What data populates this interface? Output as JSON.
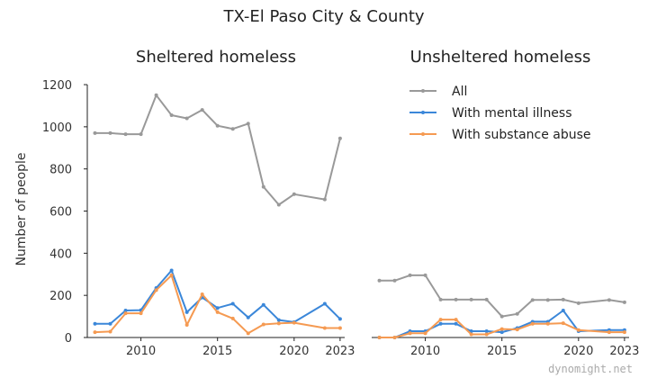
{
  "suptitle": "TX-El Paso City & County",
  "credit": "dynomight.net",
  "colors": {
    "all": "#999999",
    "mental": "#3b87d9",
    "substance": "#f59a52",
    "axis": "#222222",
    "text": "#333333"
  },
  "chart_data": [
    {
      "type": "line",
      "title": "Sheltered homeless",
      "ylabel": "Number of people",
      "xlabel": "",
      "xlim": [
        2006.5,
        2023.3
      ],
      "ylim": [
        0,
        1260
      ],
      "xticks": [
        2010,
        2015,
        2020,
        2023
      ],
      "yticks": [
        0,
        200,
        400,
        600,
        800,
        1000,
        1200
      ],
      "legend": "none",
      "grid": false,
      "series": [
        {
          "name": "All",
          "color_key": "all",
          "x": [
            2007,
            2008,
            2009,
            2010,
            2011,
            2012,
            2013,
            2014,
            2015,
            2016,
            2017,
            2018,
            2019,
            2020,
            2022,
            2023
          ],
          "y": [
            970,
            970,
            965,
            965,
            1150,
            1055,
            1040,
            1080,
            1005,
            990,
            1015,
            715,
            630,
            680,
            655,
            945
          ]
        },
        {
          "name": "With mental illness",
          "color_key": "mental",
          "x": [
            2007,
            2008,
            2009,
            2010,
            2011,
            2012,
            2013,
            2014,
            2015,
            2016,
            2017,
            2018,
            2019,
            2020,
            2022,
            2023
          ],
          "y": [
            65,
            65,
            128,
            130,
            235,
            318,
            120,
            190,
            140,
            160,
            95,
            155,
            83,
            73,
            160,
            88
          ]
        },
        {
          "name": "With substance abuse",
          "color_key": "substance",
          "x": [
            2007,
            2008,
            2009,
            2010,
            2011,
            2012,
            2013,
            2014,
            2015,
            2016,
            2017,
            2018,
            2019,
            2020,
            2022,
            2023
          ],
          "y": [
            25,
            28,
            115,
            115,
            225,
            295,
            60,
            205,
            120,
            90,
            20,
            62,
            67,
            70,
            45,
            45
          ]
        }
      ]
    },
    {
      "type": "line",
      "title": "Unsheltered homeless",
      "ylabel": "",
      "xlabel": "",
      "xlim": [
        2006.5,
        2023.3
      ],
      "ylim": [
        0,
        1260
      ],
      "xticks": [
        2010,
        2015,
        2020,
        2023
      ],
      "yticks": [],
      "legend": "upper-center",
      "grid": false,
      "series": [
        {
          "name": "All",
          "color_key": "all",
          "x": [
            2007,
            2008,
            2009,
            2010,
            2011,
            2012,
            2013,
            2014,
            2015,
            2016,
            2017,
            2018,
            2019,
            2020,
            2022,
            2023
          ],
          "y": [
            270,
            270,
            295,
            295,
            180,
            180,
            180,
            180,
            100,
            112,
            178,
            178,
            180,
            163,
            178,
            167
          ]
        },
        {
          "name": "With mental illness",
          "color_key": "mental",
          "x": [
            2007,
            2008,
            2009,
            2010,
            2011,
            2012,
            2013,
            2014,
            2015,
            2016,
            2017,
            2018,
            2019,
            2020,
            2022,
            2023
          ],
          "y": [
            0,
            0,
            30,
            30,
            65,
            65,
            30,
            30,
            25,
            45,
            75,
            75,
            128,
            30,
            35,
            35
          ]
        },
        {
          "name": "With substance abuse",
          "color_key": "substance",
          "x": [
            2007,
            2008,
            2009,
            2010,
            2011,
            2012,
            2013,
            2014,
            2015,
            2016,
            2017,
            2018,
            2019,
            2020,
            2022,
            2023
          ],
          "y": [
            0,
            0,
            20,
            20,
            85,
            85,
            15,
            15,
            40,
            38,
            65,
            65,
            68,
            35,
            25,
            25
          ]
        }
      ]
    }
  ]
}
